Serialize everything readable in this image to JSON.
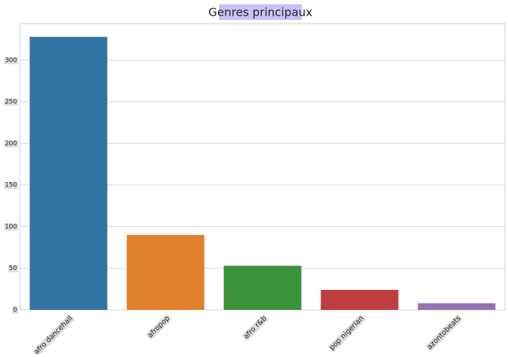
{
  "chart_data": {
    "type": "bar",
    "title": "Genres principaux",
    "categories": [
      "afro dancehall",
      "afropop",
      "afro r&b",
      "pop nigerian",
      "azontobeats"
    ],
    "values": [
      328,
      90,
      53,
      24,
      8
    ],
    "colors": [
      "#3274a1",
      "#e1812c",
      "#3a923a",
      "#c03d3e",
      "#9372b2"
    ],
    "ylim": [
      0,
      344
    ],
    "yticks": [
      0,
      50,
      100,
      150,
      200,
      250,
      300
    ],
    "grid": true
  }
}
